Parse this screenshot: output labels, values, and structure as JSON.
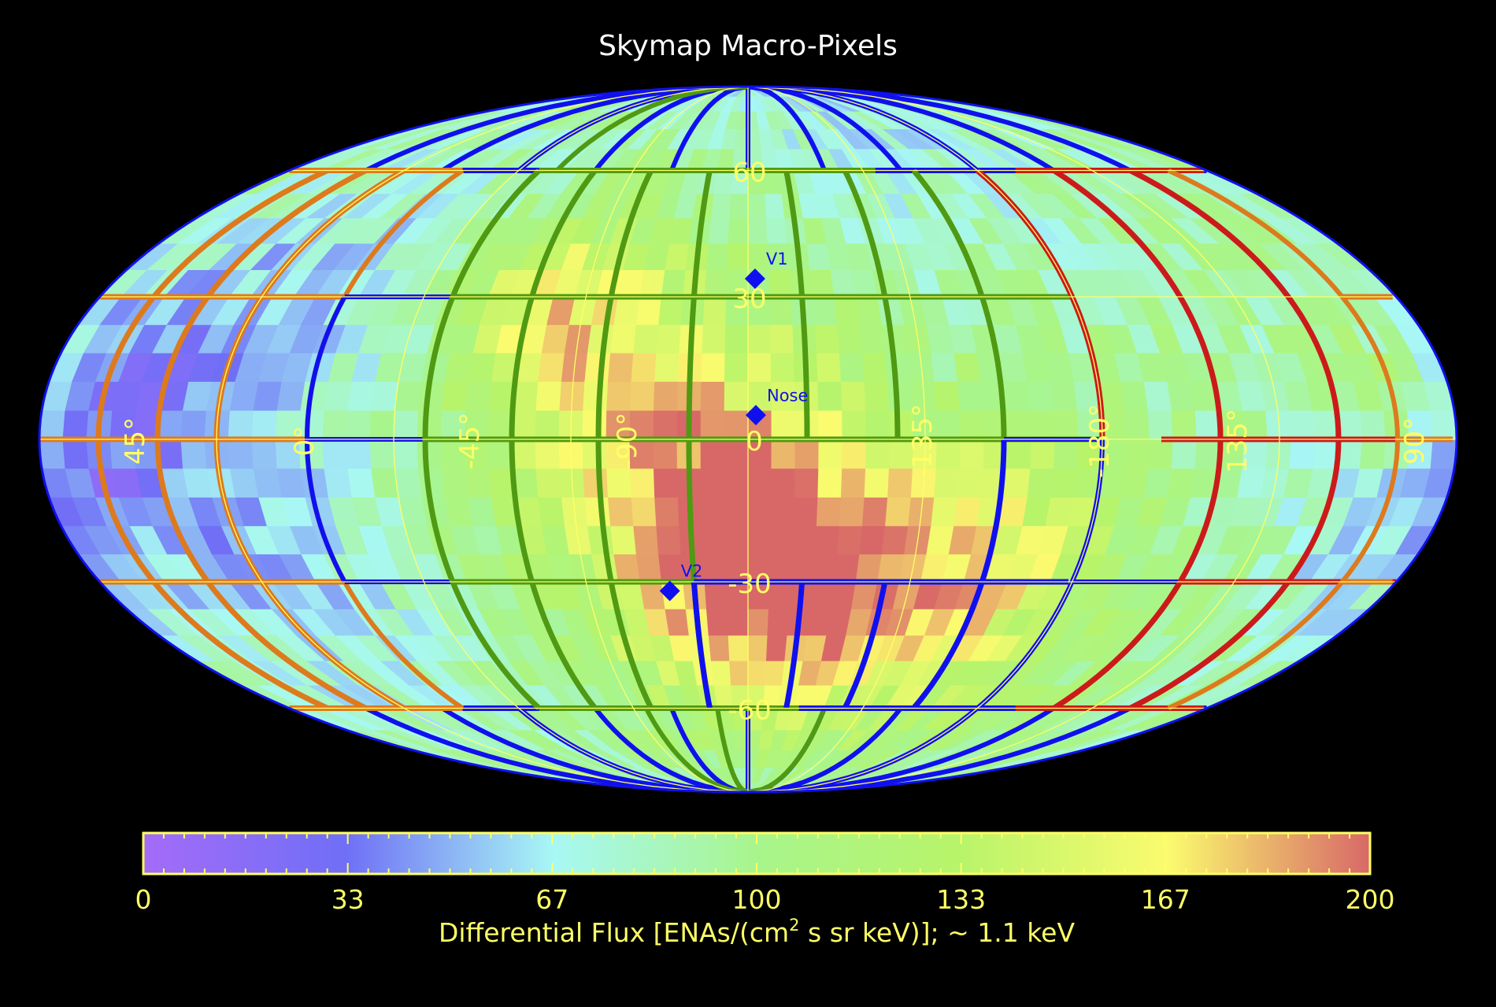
{
  "title": "Skymap Macro-Pixels",
  "colors": {
    "background": "#000000",
    "annotation_text": "#ffff66",
    "marker": "#1010ee",
    "gridline": "#ffff66",
    "macro_border_blue": "#1010ee",
    "macro_border_green": "#4f9a12",
    "macro_border_orange": "#dd7a1e",
    "macro_border_red": "#cc1a1a"
  },
  "chart_data": {
    "type": "heatmap",
    "projection": "mollweide",
    "longitude_tick_labels": [
      "45°",
      "0°",
      "-45°",
      "-90°",
      "0",
      "-135°",
      "-180°",
      "135°",
      "90°"
    ],
    "latitude_tick_labels": [
      "60",
      "30",
      "0",
      "-30",
      "-60"
    ],
    "markers": [
      {
        "label": "V1",
        "lat": 34,
        "x_offset_deg": 2
      },
      {
        "label": "Nose",
        "lat": 5,
        "x_offset_deg": 2
      },
      {
        "label": "V2",
        "lat": -32,
        "x_offset_deg": -22
      }
    ],
    "colorbar": {
      "label_prefix": "Differential Flux [ENAs/(cm",
      "label_sup": "2",
      "label_suffix": " s sr keV)]; ~ 1.1 keV",
      "range": [
        0,
        200
      ],
      "ticks": [
        "0",
        "33",
        "67",
        "100",
        "133",
        "167",
        "200"
      ],
      "stops": [
        {
          "v": 0,
          "color": "#a46bf8"
        },
        {
          "v": 33,
          "color": "#6f6ff6"
        },
        {
          "v": 67,
          "color": "#a8f8f4"
        },
        {
          "v": 100,
          "color": "#a8f58c"
        },
        {
          "v": 133,
          "color": "#b8f46a"
        },
        {
          "v": 167,
          "color": "#fbfb6e"
        },
        {
          "v": 200,
          "color": "#d86868"
        }
      ]
    },
    "flux_hotspots": [
      {
        "lat": 0,
        "lon": -20,
        "peak": 70,
        "width": 35
      },
      {
        "lat": -30,
        "lon": 5,
        "peak": 95,
        "width": 30
      },
      {
        "lat": -30,
        "lon": 60,
        "peak": 70,
        "width": 32
      },
      {
        "lat": 28,
        "lon": -55,
        "peak": 55,
        "width": 22
      },
      {
        "lat": 5,
        "lon": -165,
        "peak": -55,
        "width": 30
      },
      {
        "lat": 35,
        "lon": -120,
        "peak": -30,
        "width": 35
      },
      {
        "lat": -35,
        "lon": -130,
        "peak": -30,
        "width": 35
      },
      {
        "lat": 70,
        "lon": 60,
        "peak": -25,
        "width": 40
      },
      {
        "lat": -15,
        "lon": 160,
        "peak": -20,
        "width": 30
      },
      {
        "lat": 10,
        "lon": 165,
        "peak": 50,
        "width": 15
      }
    ],
    "flux_baseline": 95
  }
}
